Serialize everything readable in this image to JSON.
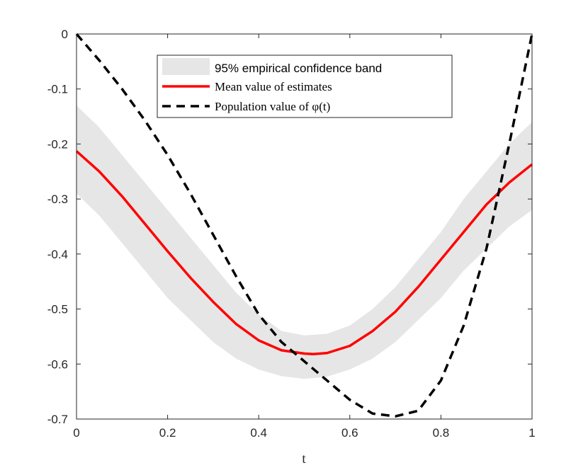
{
  "chart_data": {
    "type": "line",
    "title": "",
    "xlabel": "t",
    "ylabel": "",
    "xlim": [
      0,
      1
    ],
    "ylim": [
      -0.7,
      0
    ],
    "xticks": [
      0,
      0.2,
      0.4,
      0.6,
      0.8,
      1
    ],
    "xtick_labels": [
      "0",
      "0.2",
      "0.4",
      "0.6",
      "0.8",
      "1"
    ],
    "yticks": [
      0,
      -0.1,
      -0.2,
      -0.3,
      -0.4,
      -0.5,
      -0.6,
      -0.7
    ],
    "ytick_labels": [
      "0",
      "-0.1",
      "-0.2",
      "-0.3",
      "-0.4",
      "-0.5",
      "-0.6",
      "-0.7"
    ],
    "grid": false,
    "legend_position": "top-center",
    "legend": [
      {
        "label": "95% empirical confidence band",
        "style": "band"
      },
      {
        "label": "Mean value of estimates",
        "style": "solid"
      },
      {
        "label": "Population value of φ(t)",
        "style": "dashed"
      }
    ],
    "series": [
      {
        "name": "95% empirical confidence band",
        "kind": "band",
        "color": "#e6e6e6",
        "x": [
          0,
          0.05,
          0.1,
          0.15,
          0.2,
          0.25,
          0.3,
          0.35,
          0.4,
          0.45,
          0.5,
          0.55,
          0.6,
          0.65,
          0.7,
          0.75,
          0.8,
          0.85,
          0.9,
          0.95,
          1
        ],
        "upper": [
          -0.13,
          -0.17,
          -0.22,
          -0.27,
          -0.32,
          -0.37,
          -0.42,
          -0.47,
          -0.51,
          -0.54,
          -0.548,
          -0.545,
          -0.53,
          -0.5,
          -0.46,
          -0.41,
          -0.36,
          -0.3,
          -0.25,
          -0.2,
          -0.16
        ],
        "lower": [
          -0.29,
          -0.33,
          -0.38,
          -0.43,
          -0.48,
          -0.52,
          -0.56,
          -0.59,
          -0.61,
          -0.622,
          -0.627,
          -0.623,
          -0.61,
          -0.59,
          -0.56,
          -0.52,
          -0.48,
          -0.43,
          -0.39,
          -0.35,
          -0.32
        ]
      },
      {
        "name": "Mean value of estimates",
        "kind": "line",
        "color": "#ff0000",
        "style": "solid",
        "x": [
          0,
          0.05,
          0.1,
          0.15,
          0.2,
          0.25,
          0.3,
          0.35,
          0.4,
          0.45,
          0.5,
          0.52,
          0.55,
          0.6,
          0.65,
          0.7,
          0.75,
          0.8,
          0.85,
          0.9,
          0.95,
          1
        ],
        "values": [
          -0.213,
          -0.25,
          -0.295,
          -0.345,
          -0.395,
          -0.443,
          -0.487,
          -0.527,
          -0.557,
          -0.575,
          -0.581,
          -0.582,
          -0.58,
          -0.567,
          -0.54,
          -0.505,
          -0.46,
          -0.41,
          -0.36,
          -0.31,
          -0.27,
          -0.237
        ]
      },
      {
        "name": "Population value of φ(t)",
        "kind": "line",
        "color": "#000000",
        "style": "dashed",
        "x": [
          0,
          0.05,
          0.1,
          0.15,
          0.2,
          0.25,
          0.3,
          0.35,
          0.4,
          0.45,
          0.5,
          0.55,
          0.6,
          0.65,
          0.7,
          0.75,
          0.8,
          0.85,
          0.9,
          0.95,
          1
        ],
        "values": [
          0,
          -0.048,
          -0.1,
          -0.157,
          -0.22,
          -0.29,
          -0.365,
          -0.44,
          -0.51,
          -0.56,
          -0.595,
          -0.63,
          -0.665,
          -0.69,
          -0.695,
          -0.685,
          -0.63,
          -0.53,
          -0.39,
          -0.2,
          0
        ]
      }
    ]
  }
}
